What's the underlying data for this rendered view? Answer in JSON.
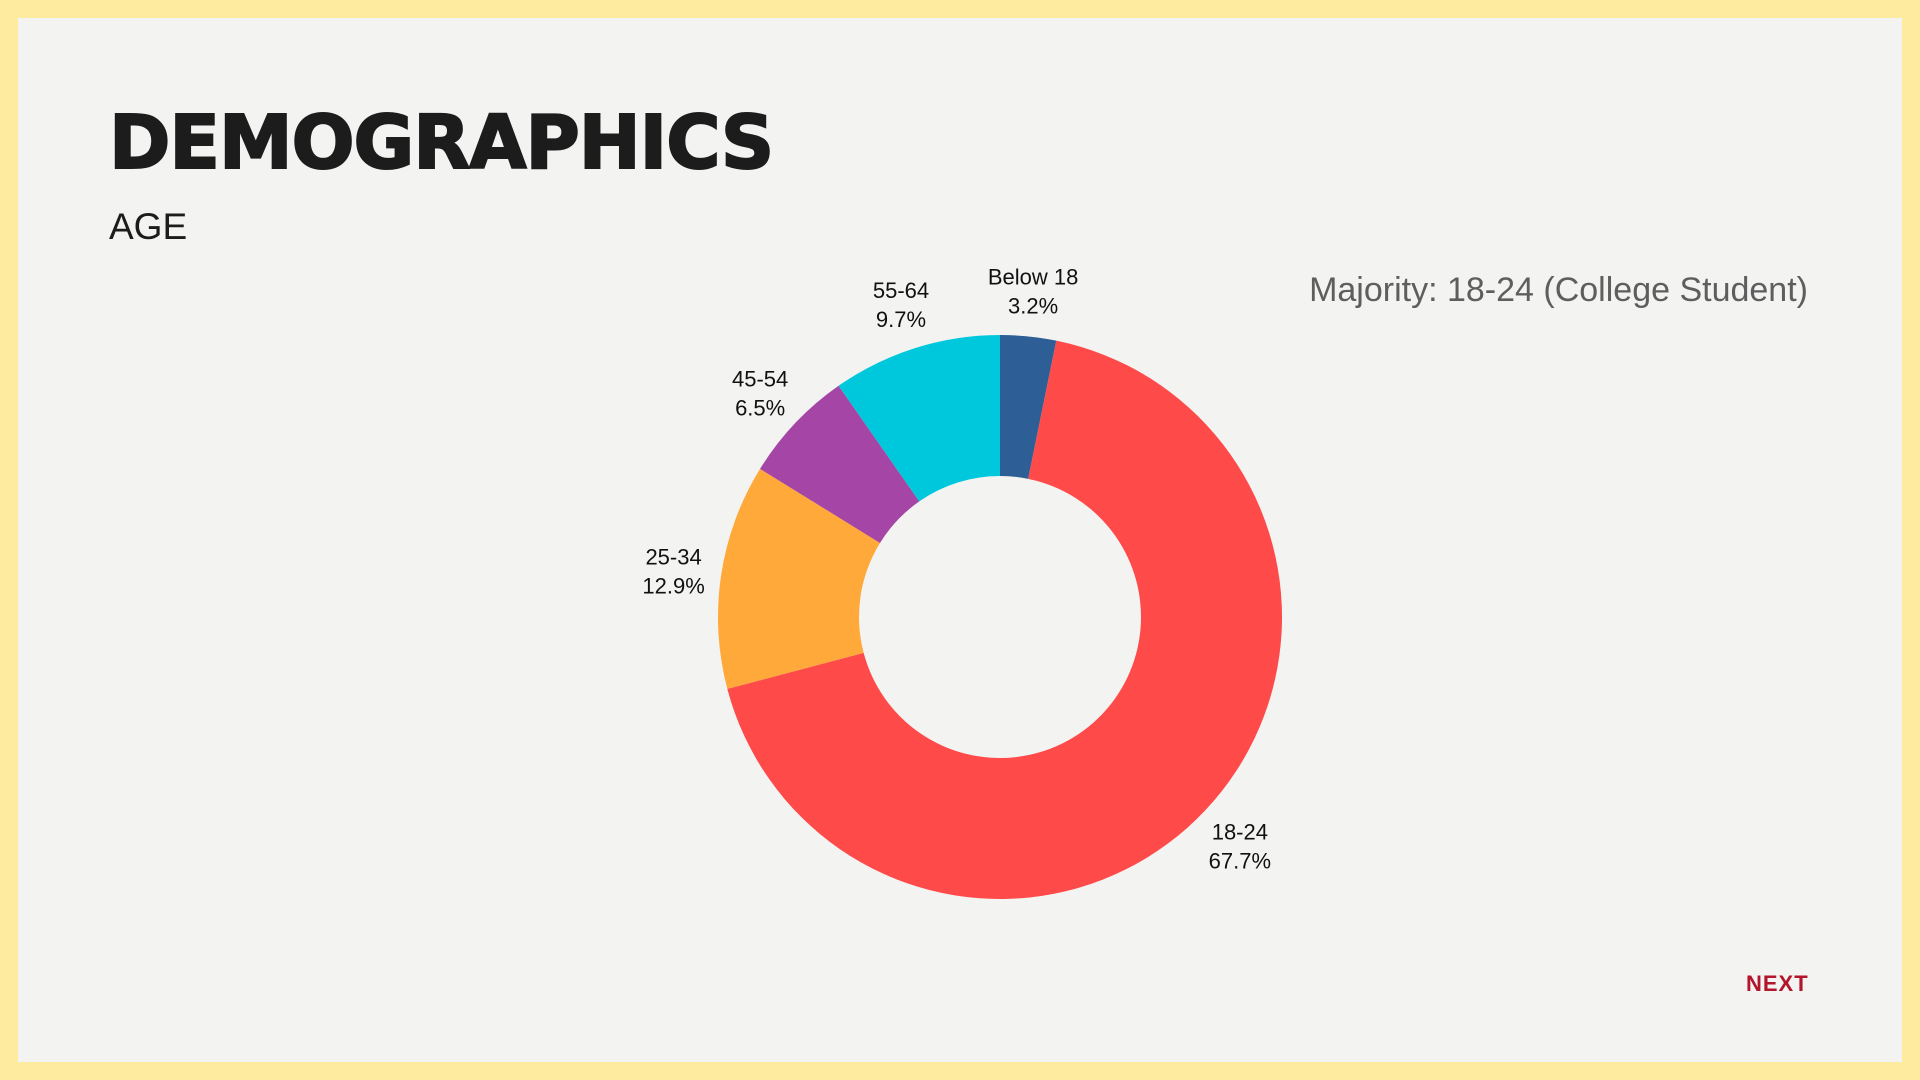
{
  "slide": {
    "title": "DEMOGRAPHICS",
    "subtitle": "AGE",
    "note": "Majority: 18-24 (College Student)",
    "next_label": "NEXT",
    "colors": {
      "frame": "#ffeb9f",
      "background": "#f3f3f2",
      "next": "#b1162a"
    }
  },
  "chart_data": {
    "type": "pie",
    "variant": "donut",
    "title": "",
    "categories": [
      "Below 18",
      "18-24",
      "25-34",
      "45-54",
      "55-64"
    ],
    "values": [
      3.2,
      67.7,
      12.9,
      6.5,
      9.7
    ],
    "value_labels": [
      "3.2%",
      "67.7%",
      "12.9%",
      "6.5%",
      "9.7%"
    ],
    "colors": [
      "#2e5e96",
      "#ff4a4a",
      "#ffa93a",
      "#a545a5",
      "#00c8dc"
    ],
    "start": "12 o'clock, clockwise",
    "legend": "none"
  }
}
